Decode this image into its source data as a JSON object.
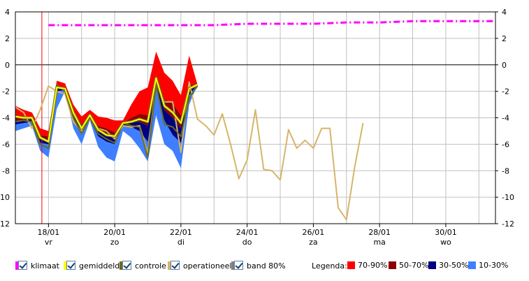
{
  "legend": {
    "items": [
      {
        "label": "klimaat",
        "color": "#ff00ff"
      },
      {
        "label": "gemiddeld",
        "color": "#ffff00"
      },
      {
        "label": "controle",
        "color": "#6b6b1f"
      },
      {
        "label": "operationeel",
        "color": "#d6b56a"
      },
      {
        "label": "band 80%",
        "color": "#7f7f7f"
      }
    ],
    "bands_title": "Legenda:",
    "bands": [
      {
        "label": "70-90%",
        "color": "#ff0000"
      },
      {
        "label": "50-70%",
        "color": "#8b0000"
      },
      {
        "label": "30-50%",
        "color": "#000080"
      },
      {
        "label": "10-30%",
        "color": "#3f7fff"
      }
    ]
  },
  "chart_data": {
    "type": "line",
    "title": "",
    "xlabel": "",
    "ylabel": "",
    "xlim": [
      17.0,
      31.5
    ],
    "ylim": [
      -12,
      4
    ],
    "y_ticks": [
      4,
      2,
      0,
      -2,
      -4,
      -6,
      -8,
      -10,
      -12
    ],
    "y_tick_labels_right": [
      "4",
      "2",
      "0",
      "-2",
      "-4",
      "-6",
      "-8",
      "-10",
      "-12"
    ],
    "x_ticks": [
      {
        "x": 18,
        "date": "18/01",
        "day": "vr"
      },
      {
        "x": 20,
        "date": "20/01",
        "day": "zo"
      },
      {
        "x": 22,
        "date": "22/01",
        "day": "di"
      },
      {
        "x": 24,
        "date": "24/01",
        "day": "do"
      },
      {
        "x": 26,
        "date": "26/01",
        "day": "za"
      },
      {
        "x": 28,
        "date": "28/01",
        "day": "ma"
      },
      {
        "x": 30,
        "date": "30/01",
        "day": "wo"
      }
    ],
    "grid": true,
    "reference_line": 17.8,
    "ensemble_x": [
      17.0,
      17.25,
      17.5,
      17.75,
      18.0,
      18.25,
      18.5,
      18.75,
      19.0,
      19.25,
      19.5,
      19.75,
      20.0,
      20.25,
      20.5,
      20.75,
      21.0,
      21.25,
      21.5,
      21.75,
      22.0,
      22.25,
      22.5
    ],
    "bands": {
      "p10": [
        -5.0,
        -4.8,
        -4.6,
        -6.5,
        -7.0,
        -3.3,
        -2.0,
        -4.8,
        -6.0,
        -4.2,
        -6.2,
        -7.0,
        -7.3,
        -5.0,
        -5.5,
        -6.3,
        -7.3,
        -3.8,
        -6.0,
        -6.5,
        -7.8,
        -3.0,
        -1.5
      ],
      "p30": [
        -4.5,
        -4.4,
        -4.3,
        -5.9,
        -6.0,
        -2.0,
        -1.9,
        -4.0,
        -5.2,
        -4.1,
        -5.4,
        -5.8,
        -6.0,
        -4.6,
        -4.7,
        -5.0,
        -5.8,
        -1.8,
        -4.2,
        -5.3,
        -5.9,
        -2.3,
        -1.5
      ],
      "p50": [
        -4.2,
        -4.2,
        -4.1,
        -5.6,
        -5.7,
        -1.8,
        -1.8,
        -3.7,
        -4.9,
        -4.0,
        -5.0,
        -5.3,
        -5.6,
        -4.5,
        -4.3,
        -4.3,
        -4.6,
        -1.3,
        -3.4,
        -4.0,
        -4.8,
        -1.9,
        -1.5
      ],
      "p70": [
        -3.9,
        -4.0,
        -3.9,
        -5.3,
        -5.4,
        -1.6,
        -1.7,
        -3.4,
        -4.5,
        -3.8,
        -4.6,
        -4.8,
        -5.1,
        -4.4,
        -4.0,
        -3.7,
        -3.8,
        -0.8,
        -2.6,
        -2.9,
        -3.8,
        -1.5,
        -1.5
      ],
      "p90": [
        -3.1,
        -3.4,
        -3.6,
        -4.8,
        -5.0,
        -1.2,
        -1.4,
        -3.0,
        -3.9,
        -3.4,
        -3.9,
        -4.0,
        -4.2,
        -4.2,
        -3.0,
        -2.0,
        -1.7,
        1.0,
        -0.6,
        -1.2,
        -2.3,
        0.7,
        -1.5
      ]
    },
    "series": [
      {
        "name": "klimaat",
        "style": "dashdot",
        "color": "#ff00ff",
        "x": [
          18.0,
          19.0,
          20.0,
          21.0,
          22.0,
          23.0,
          24.0,
          25.0,
          26.0,
          27.0,
          28.0,
          29.0,
          30.0,
          31.5
        ],
        "y": [
          3.0,
          3.0,
          3.0,
          3.0,
          3.0,
          3.0,
          3.1,
          3.1,
          3.1,
          3.2,
          3.2,
          3.3,
          3.3,
          3.3
        ]
      },
      {
        "name": "gemiddeld",
        "color": "#ffff00",
        "x": [
          17.0,
          17.25,
          17.5,
          17.75,
          18.0,
          18.25,
          18.5,
          18.75,
          19.0,
          19.25,
          19.5,
          19.75,
          20.0,
          20.25,
          20.5,
          20.75,
          21.0,
          21.25,
          21.5,
          21.75,
          22.0,
          22.25,
          22.5
        ],
        "y": [
          -3.9,
          -4.0,
          -4.0,
          -5.5,
          -5.8,
          -1.7,
          -1.8,
          -3.6,
          -4.8,
          -3.8,
          -4.9,
          -5.3,
          -5.4,
          -4.4,
          -4.3,
          -4.1,
          -4.3,
          -1.0,
          -3.1,
          -3.6,
          -4.4,
          -1.8,
          -1.5
        ]
      },
      {
        "name": "controle",
        "color": "#6b6b1f",
        "x": [
          17.0,
          17.25,
          17.5,
          17.75,
          18.0,
          18.25,
          18.5,
          18.75,
          19.0,
          19.25,
          19.5,
          19.75,
          20.0,
          20.25,
          20.5,
          20.75,
          21.0,
          21.25,
          21.5,
          21.75,
          22.0,
          22.25,
          22.5
        ],
        "y": [
          -4.3,
          -4.2,
          -4.3,
          -6.0,
          -6.3,
          -1.5,
          -2.0,
          -4.0,
          -5.2,
          -4.0,
          -5.2,
          -5.6,
          -5.9,
          -4.4,
          -4.6,
          -4.7,
          -7.0,
          -1.5,
          -4.5,
          -4.7,
          -5.4,
          -2.5,
          -1.6
        ]
      },
      {
        "name": "operationeel",
        "color": "#d6b56a",
        "x": [
          17.0,
          17.25,
          17.5,
          17.75,
          18.0,
          18.25,
          18.5,
          18.75,
          19.0,
          19.25,
          19.5,
          19.75,
          20.0,
          20.25,
          20.5,
          20.75,
          21.0,
          21.25,
          21.5,
          21.75,
          22.0,
          22.25,
          22.5,
          22.75,
          23.0,
          23.25,
          23.5,
          23.75,
          24.0,
          24.25,
          24.5,
          24.75,
          25.0,
          25.25,
          25.5,
          25.75,
          26.0,
          26.25,
          26.5,
          26.75,
          27.0,
          27.25,
          27.5
        ],
        "y": [
          -3.2,
          -3.6,
          -4.8,
          -3.4,
          -1.6,
          -2.0,
          -2.2,
          -4.3,
          -5.0,
          -4.1,
          -4.8,
          -5.0,
          -5.6,
          -4.6,
          -4.7,
          -4.6,
          -6.7,
          -1.3,
          -2.8,
          -2.8,
          -6.6,
          -1.3,
          -4.1,
          -4.6,
          -5.3,
          -3.7,
          -6.0,
          -8.6,
          -7.2,
          -3.4,
          -7.9,
          -8.0,
          -8.7,
          -4.9,
          -6.3,
          -5.7,
          -6.3,
          -4.8,
          -4.8,
          -10.8,
          -11.7,
          -7.7,
          -4.4
        ]
      }
    ]
  }
}
